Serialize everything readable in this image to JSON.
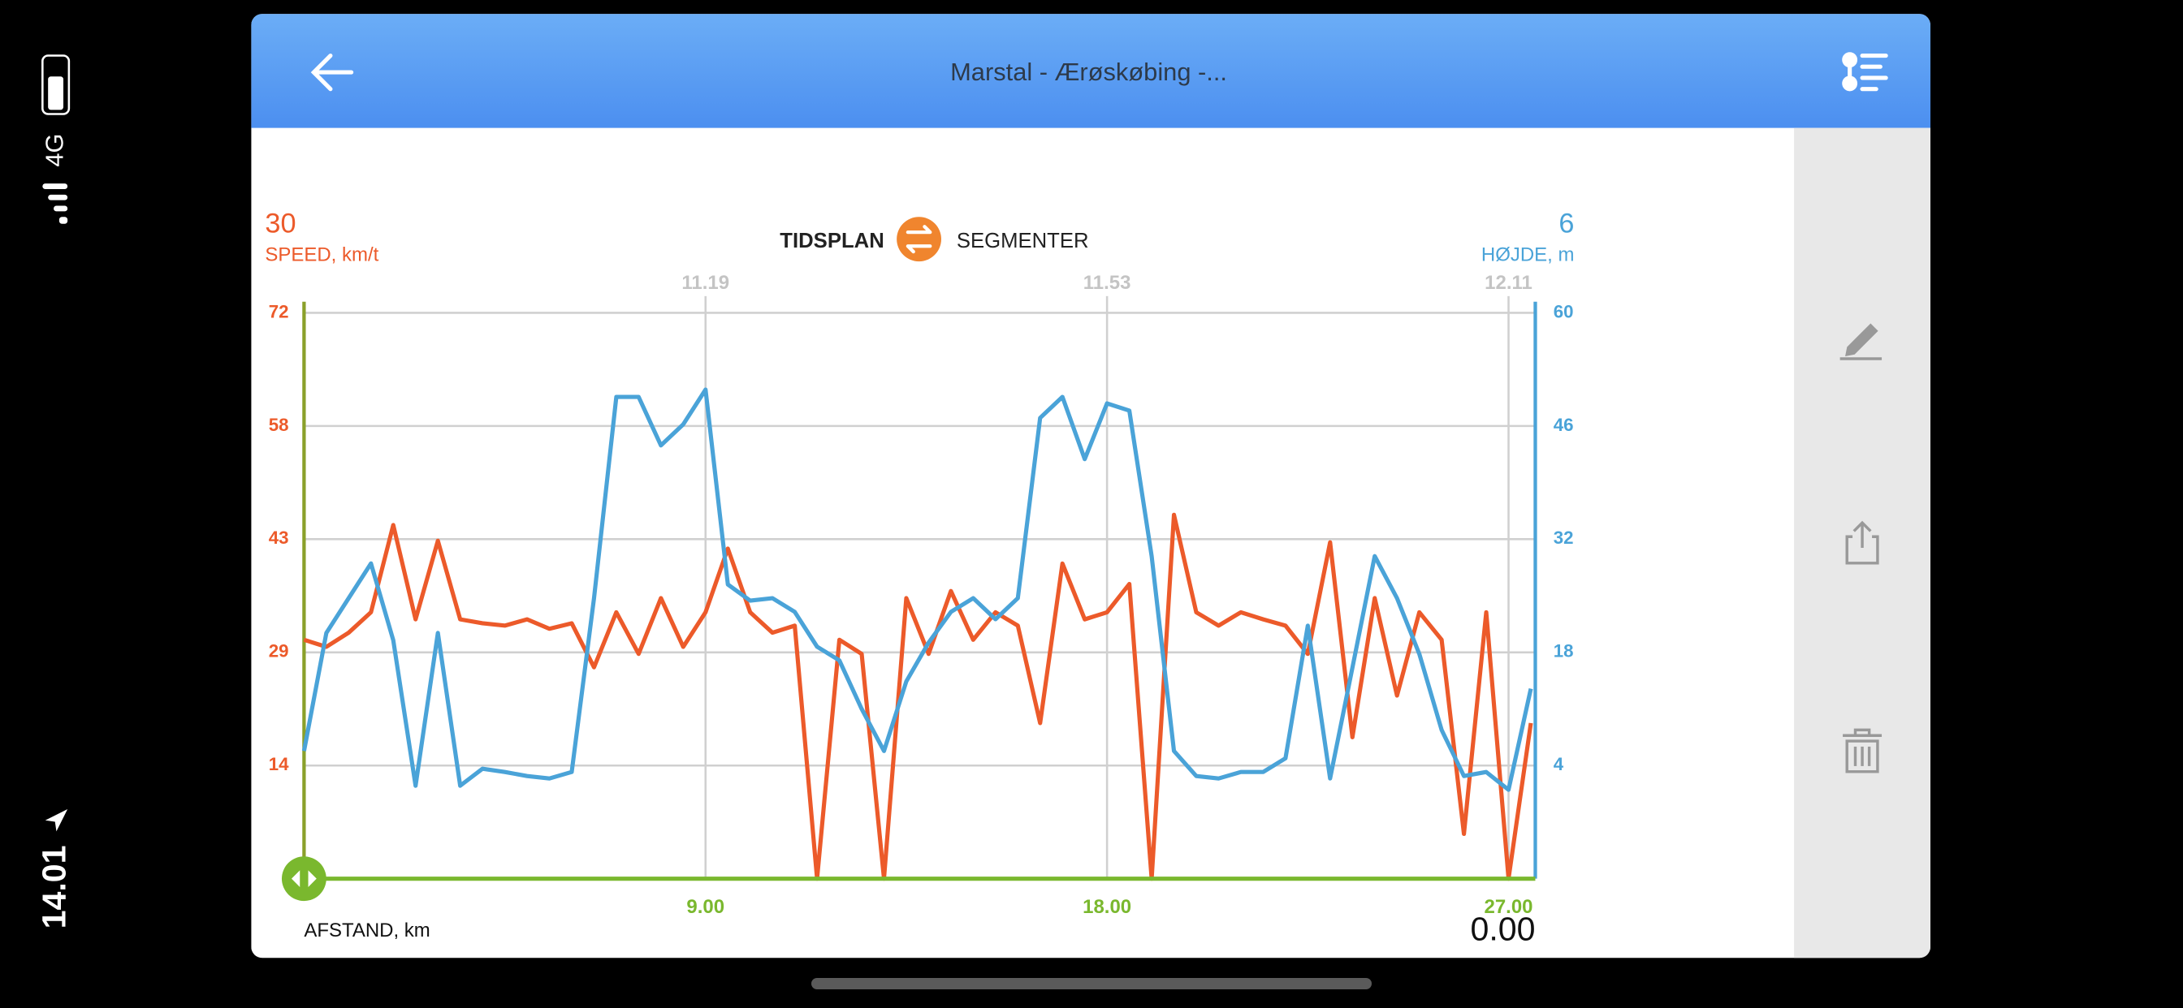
{
  "status_bar": {
    "time": "14.01",
    "network": "4G"
  },
  "header": {
    "title": "Marstal - Ærøskøbing -..."
  },
  "chart_data": {
    "type": "line",
    "tabs": [
      "TIDSPLAN",
      "SEGMENTER"
    ],
    "current_speed": 30,
    "current_height": 6,
    "current_distance": "0.00",
    "x_label": "AFSTAND, km",
    "x": [
      0,
      0.5,
      1,
      1.5,
      2,
      2.5,
      3,
      3.5,
      4,
      4.5,
      5,
      5.5,
      6,
      6.5,
      7,
      7.5,
      8,
      8.5,
      9,
      9.5,
      10,
      10.5,
      11,
      11.5,
      12,
      12.5,
      13,
      13.5,
      14,
      14.5,
      15,
      15.5,
      16,
      16.5,
      17,
      17.5,
      18,
      18.5,
      19,
      19.5,
      20,
      20.5,
      21,
      21.5,
      22,
      22.5,
      23,
      23.5,
      24,
      24.5,
      25,
      25.5,
      26,
      26.5,
      27,
      27.5
    ],
    "series": [
      {
        "name": "SPEED, km/t",
        "color": "#ec5a2a",
        "values": [
          30.4,
          29.5,
          31.3,
          33.9,
          45,
          33,
          43,
          33,
          32.5,
          32.2,
          33,
          31.8,
          32.5,
          26.9,
          33.9,
          28.6,
          35.7,
          29.5,
          33.9,
          42,
          33.9,
          31.3,
          32.2,
          0,
          30.4,
          28.6,
          0,
          35.7,
          28.6,
          36.6,
          30.4,
          33.9,
          32.2,
          19.8,
          40.1,
          33,
          33.9,
          37.5,
          0,
          46.3,
          33.9,
          32.2,
          33.9,
          33,
          32.2,
          28.6,
          42.8,
          18,
          35.7,
          23.3,
          33.9,
          30.4,
          5.7,
          33.9,
          0,
          19.8
        ]
      },
      {
        "name": "HØJDE, m",
        "color": "#4aa3d8",
        "axis": "y2",
        "values": [
          5.8,
          20.4,
          24.7,
          29,
          19.5,
          1.5,
          20.4,
          1.5,
          3.6,
          3.2,
          2.7,
          2.4,
          3.2,
          24.7,
          49.6,
          49.6,
          43.6,
          46.2,
          50.5,
          26.4,
          24.4,
          24.7,
          23,
          18.7,
          17,
          11,
          5.8,
          14.4,
          19.2,
          23,
          24.7,
          22.1,
          24.7,
          47,
          49.6,
          41.9,
          48.8,
          47.9,
          29.9,
          5.8,
          2.7,
          2.4,
          3.2,
          3.2,
          4.9,
          21.3,
          2.4,
          16.1,
          29.9,
          24.7,
          17.8,
          8.4,
          2.7,
          3.2,
          1,
          13.5
        ]
      }
    ],
    "xlim": [
      0,
      27.6
    ],
    "xticks": [
      {
        "value": 9,
        "label": "9.00"
      },
      {
        "value": 18,
        "label": "18.00"
      },
      {
        "value": 27,
        "label": "27.00"
      }
    ],
    "time_labels": [
      "11.19",
      "11.53",
      "12.11"
    ],
    "ylim": [
      0,
      72
    ],
    "yticks": [
      {
        "value": 14.4,
        "label": "14"
      },
      {
        "value": 28.8,
        "label": "29"
      },
      {
        "value": 43.2,
        "label": "43"
      },
      {
        "value": 57.6,
        "label": "58"
      },
      72
    ],
    "y2lim": [
      -10,
      60
    ],
    "y2ticks": [
      4,
      18,
      32,
      46,
      60
    ],
    "grid": true
  }
}
